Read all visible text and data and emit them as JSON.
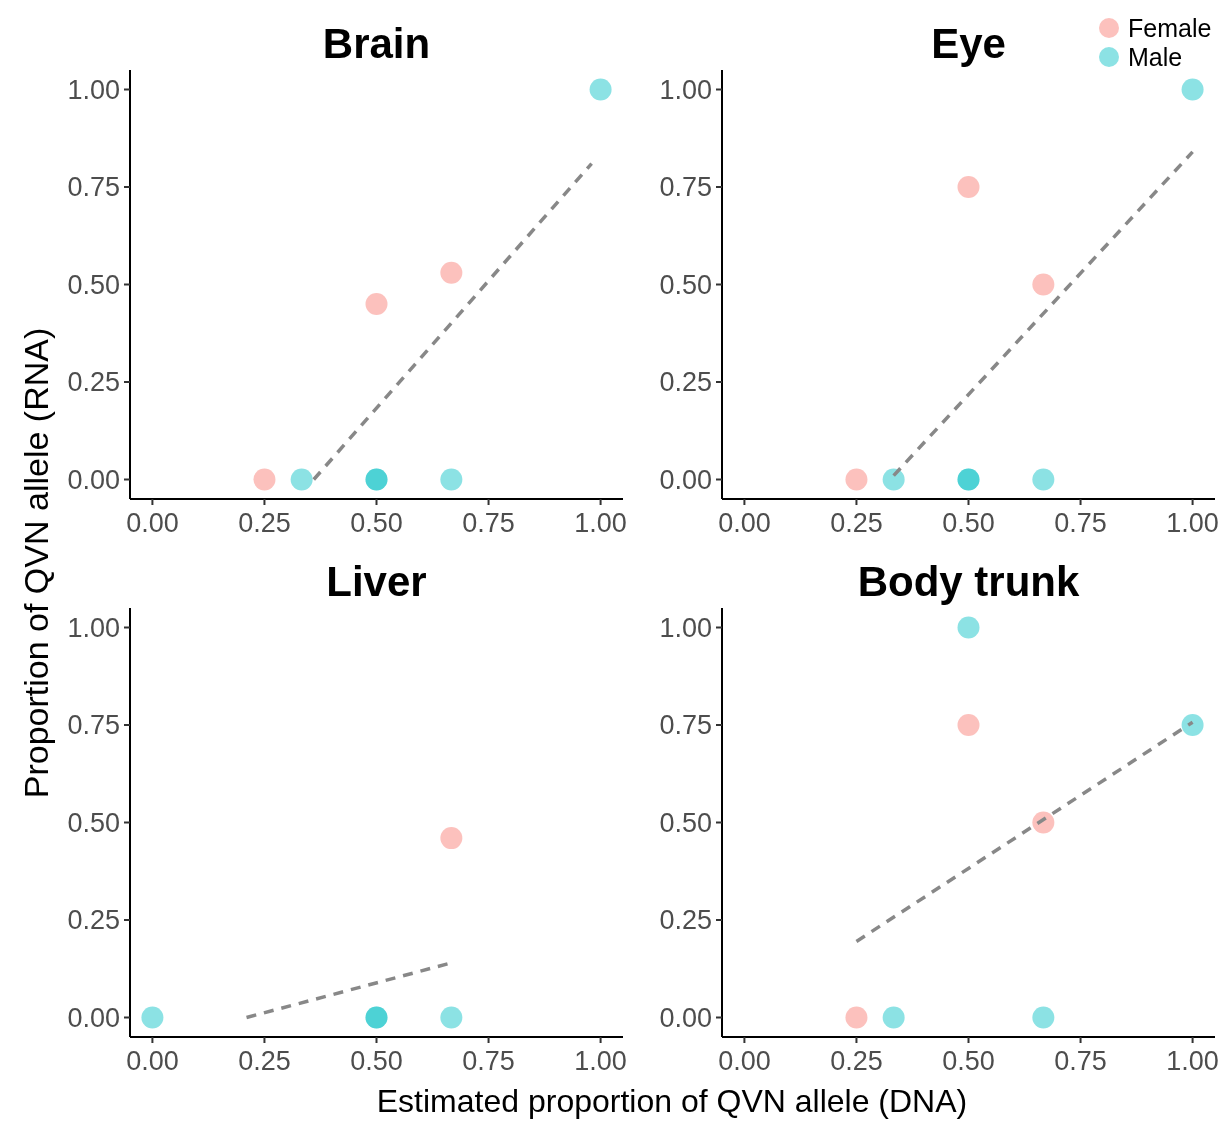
{
  "chart_data": [
    {
      "type": "scatter",
      "title": "Brain",
      "ylabel": "Proportion of QVN allele (RNA)",
      "xlim": [
        -0.05,
        1.05
      ],
      "ylim": [
        -0.05,
        1.05
      ],
      "xticks": [
        {
          "value": 0,
          "label": "0.00"
        },
        {
          "value": 0.25,
          "label": "0.25"
        },
        {
          "value": 0.5,
          "label": "0.50"
        },
        {
          "value": 0.75,
          "label": "0.75"
        },
        {
          "value": 1,
          "label": "1.00"
        }
      ],
      "yticks": [
        {
          "value": 0,
          "label": "0.00"
        },
        {
          "value": 0.25,
          "label": "0.25"
        },
        {
          "value": 0.5,
          "label": "0.50"
        },
        {
          "value": 0.75,
          "label": "0.75"
        },
        {
          "value": 1,
          "label": "1.00"
        }
      ],
      "marker": "circle",
      "legend": "top right",
      "series": [
        {
          "name": "Female",
          "color": "#f8766d",
          "x": [
            0.25,
            0.5,
            0.667
          ],
          "values": [
            0,
            0.45,
            0.53
          ]
        },
        {
          "name": "Male",
          "color": "#00bfc4",
          "x": [
            0.333,
            0.5,
            0.5,
            0.667,
            1
          ],
          "values": [
            0,
            0,
            0,
            0,
            1
          ]
        },
        {
          "type": "line",
          "marker": "none",
          "line_style": "dashed",
          "color": "#888888",
          "x": [
            0.36,
            0.98
          ],
          "values": [
            0,
            0.81
          ]
        }
      ]
    },
    {
      "type": "scatter",
      "title": "Eye",
      "xlim": [
        -0.05,
        1.05
      ],
      "ylim": [
        -0.05,
        1.05
      ],
      "xticks": [
        {
          "value": 0,
          "label": "0.00"
        },
        {
          "value": 0.25,
          "label": "0.25"
        },
        {
          "value": 0.5,
          "label": "0.50"
        },
        {
          "value": 0.75,
          "label": "0.75"
        },
        {
          "value": 1,
          "label": "1.00"
        }
      ],
      "yticks": [
        {
          "value": 0,
          "label": "0.00"
        },
        {
          "value": 0.25,
          "label": "0.25"
        },
        {
          "value": 0.5,
          "label": "0.50"
        },
        {
          "value": 0.75,
          "label": "0.75"
        },
        {
          "value": 1,
          "label": "1.00"
        }
      ],
      "marker": "circle",
      "series": [
        {
          "color": "#f8766d",
          "x": [
            0.25,
            0.5,
            0.667
          ],
          "values": [
            0,
            0.75,
            0.5
          ]
        },
        {
          "color": "#00bfc4",
          "x": [
            0.333,
            0.5,
            0.5,
            0.667,
            1
          ],
          "values": [
            0,
            0,
            0,
            0,
            1
          ]
        },
        {
          "type": "line",
          "marker": "none",
          "line_style": "dashed",
          "color": "#888888",
          "x": [
            0.333,
            1
          ],
          "values": [
            0.01,
            0.84
          ]
        }
      ]
    },
    {
      "type": "scatter",
      "title": "Liver",
      "xlabel": "Estimated proportion of QVN allele (DNA)",
      "xlim": [
        -0.05,
        1.05
      ],
      "ylim": [
        -0.05,
        1.05
      ],
      "xticks": [
        {
          "value": 0,
          "label": "0.00"
        },
        {
          "value": 0.25,
          "label": "0.25"
        },
        {
          "value": 0.5,
          "label": "0.50"
        },
        {
          "value": 0.75,
          "label": "0.75"
        },
        {
          "value": 1,
          "label": "1.00"
        }
      ],
      "yticks": [
        {
          "value": 0,
          "label": "0.00"
        },
        {
          "value": 0.25,
          "label": "0.25"
        },
        {
          "value": 0.5,
          "label": "0.50"
        },
        {
          "value": 0.75,
          "label": "0.75"
        },
        {
          "value": 1,
          "label": "1.00"
        }
      ],
      "marker": "circle",
      "series": [
        {
          "color": "#f8766d",
          "x": [
            0.667
          ],
          "values": [
            0.46
          ]
        },
        {
          "color": "#00bfc4",
          "x": [
            0,
            0.5,
            0.5,
            0.667
          ],
          "values": [
            0,
            0,
            0,
            0
          ]
        },
        {
          "type": "line",
          "marker": "none",
          "line_style": "dashed",
          "color": "#888888",
          "x": [
            0.21,
            0.667
          ],
          "values": [
            0,
            0.14
          ]
        }
      ]
    },
    {
      "type": "scatter",
      "title": "Body trunk",
      "xlim": [
        -0.05,
        1.05
      ],
      "ylim": [
        -0.05,
        1.05
      ],
      "xticks": [
        {
          "value": 0,
          "label": "0.00"
        },
        {
          "value": 0.25,
          "label": "0.25"
        },
        {
          "value": 0.5,
          "label": "0.50"
        },
        {
          "value": 0.75,
          "label": "0.75"
        },
        {
          "value": 1,
          "label": "1.00"
        }
      ],
      "yticks": [
        {
          "value": 0,
          "label": "0.00"
        },
        {
          "value": 0.25,
          "label": "0.25"
        },
        {
          "value": 0.5,
          "label": "0.50"
        },
        {
          "value": 0.75,
          "label": "0.75"
        },
        {
          "value": 1,
          "label": "1.00"
        }
      ],
      "marker": "circle",
      "series": [
        {
          "color": "#f8766d",
          "x": [
            0.25,
            0.5,
            0.667
          ],
          "values": [
            0,
            0.75,
            0.5
          ]
        },
        {
          "color": "#00bfc4",
          "x": [
            0.333,
            0.5,
            0.667,
            1
          ],
          "values": [
            0,
            1,
            0,
            0.75
          ]
        },
        {
          "type": "line",
          "marker": "none",
          "line_style": "dashed",
          "color": "#888888",
          "x": [
            0.25,
            1
          ],
          "values": [
            0.195,
            0.757
          ]
        }
      ]
    }
  ]
}
